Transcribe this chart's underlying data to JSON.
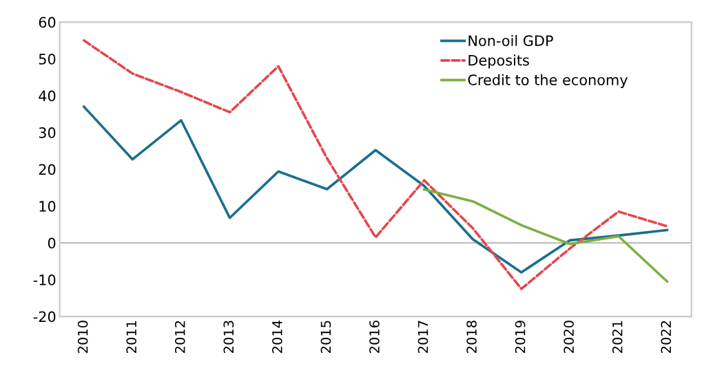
{
  "chart_data": {
    "type": "line",
    "categories": [
      "2010",
      "2011",
      "2012",
      "2013",
      "2014",
      "2015",
      "2016",
      "2017",
      "2018",
      "2019",
      "2020",
      "2021",
      "2022"
    ],
    "series": [
      {
        "name": "Non-oil GDP",
        "color": "#1a6f8e",
        "line_style": "solid",
        "values": [
          37,
          22.7,
          33.3,
          6.8,
          19.4,
          14.6,
          25.2,
          15.5,
          1,
          -8,
          0.7,
          2,
          3.5
        ]
      },
      {
        "name": "Deposits",
        "color": "#e3474d",
        "line_style": "dashed",
        "values": [
          55,
          46,
          41,
          35.5,
          48,
          23,
          1.5,
          17,
          4,
          -12.5,
          -1.5,
          8.5,
          4.5
        ]
      },
      {
        "name": "Credit to the economy",
        "color": "#7bb043",
        "line_style": "solid",
        "values": [
          null,
          null,
          null,
          null,
          null,
          null,
          null,
          14.5,
          11.3,
          4.8,
          -0.3,
          1.8,
          -10.5
        ]
      }
    ],
    "ylim": [
      -20,
      60
    ],
    "yticks": [
      -20,
      -10,
      0,
      10,
      20,
      30,
      40,
      50,
      60
    ],
    "ref_lines": [
      {
        "axis": "y",
        "value": 0,
        "color": "#b0b0b0"
      }
    ],
    "grid": false,
    "legend": "top right",
    "marker": "none"
  }
}
